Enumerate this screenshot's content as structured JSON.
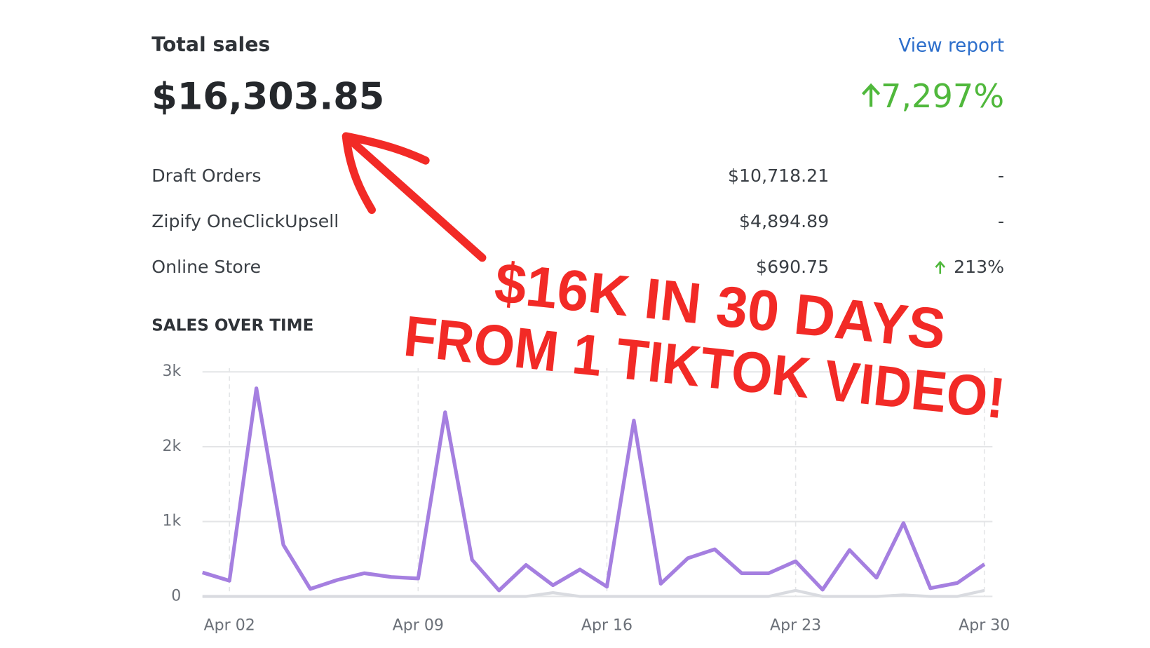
{
  "header": {
    "title": "Total sales",
    "link": "View report",
    "total": "$16,303.85",
    "change": "7,297%"
  },
  "breakdown": {
    "rows": [
      [
        "Draft Orders",
        "$10,718.21",
        "-"
      ],
      [
        "Zipify OneClickUpsell",
        "$4,894.89",
        "-"
      ],
      [
        "Online Store",
        "$690.75",
        "213%"
      ]
    ]
  },
  "chart_data": {
    "type": "line",
    "title": "SALES OVER TIME",
    "categories": [
      null,
      "Apr 02",
      null,
      null,
      null,
      null,
      null,
      null,
      "Apr 09",
      null,
      null,
      null,
      null,
      null,
      null,
      "Apr 16",
      null,
      null,
      null,
      null,
      null,
      null,
      "Apr 23",
      null,
      null,
      null,
      null,
      null,
      null,
      "Apr 30"
    ],
    "series": [
      {
        "color": "#d9dbe0",
        "values": [
          0,
          0,
          0,
          0,
          0,
          0,
          0,
          0,
          0,
          0,
          0,
          0,
          0,
          50,
          0,
          0,
          0,
          0,
          0,
          0,
          0,
          0,
          80,
          0,
          0,
          0,
          20,
          0,
          0,
          80
        ]
      },
      {
        "color": "#a57fe0",
        "values": [
          320,
          210,
          2780,
          690,
          100,
          220,
          310,
          260,
          240,
          2460,
          490,
          80,
          420,
          150,
          360,
          130,
          2350,
          170,
          510,
          630,
          310,
          310,
          470,
          90,
          620,
          250,
          980,
          110,
          180,
          430
        ]
      }
    ],
    "ylim": [
      0,
      3000
    ],
    "yticks": [
      0,
      {
        "value": 1000,
        "label": "1k"
      },
      {
        "value": 2000,
        "label": "2k"
      },
      {
        "value": 3000,
        "label": "3k"
      }
    ],
    "grid": true
  },
  "annotation": {
    "lines": [
      "$16K IN 30 DAYS",
      "FROM 1 TIKTOK VIDEO!"
    ]
  }
}
